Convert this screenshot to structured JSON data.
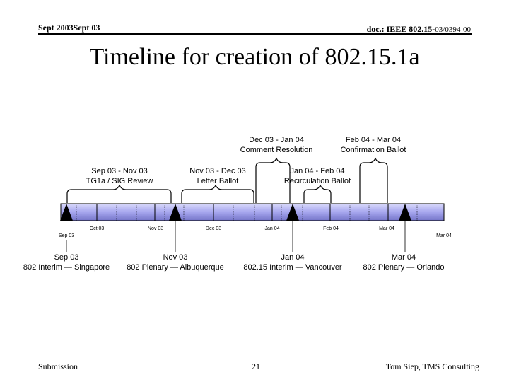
{
  "header": {
    "left": "Sept 2003Sept 03",
    "right_bold": "doc.: IEEE 802.15-",
    "right_light": "03/0394-00"
  },
  "title": "Timeline for creation of 802.15.1a",
  "timeline": {
    "ticks": [
      "Sep 03",
      "Oct 03",
      "Nov 03",
      "Dec 03",
      "Jan 04",
      "Feb 04",
      "Mar 04",
      "Mar 04"
    ],
    "phases_top": [
      {
        "line1": "Dec 03 - Jan 04",
        "line2": "Comment Resolution"
      },
      {
        "line1": "Feb 04 - Mar 04",
        "line2": "Confirmation Ballot"
      }
    ],
    "phases_bottom": [
      {
        "line1": "Sep 03 - Nov 03",
        "line2": "TG1a / SIG Review"
      },
      {
        "line1": "Nov 03 - Dec 03",
        "line2": "Letter Ballot"
      },
      {
        "line1": "Jan 04 - Feb 04",
        "line2": "Recirculation Ballot"
      }
    ],
    "meetings": [
      {
        "date": "Sep 03",
        "name": "802 Interim — Singapore"
      },
      {
        "date": "Nov 03",
        "name": "802 Plenary — Albuquerque"
      },
      {
        "date": "Jan 04",
        "name": "802.15 Interim — Vancouver"
      },
      {
        "date": "Mar 04",
        "name": "802 Plenary — Orlando"
      }
    ],
    "colors": {
      "bar_light": "#d8d8fb",
      "bar_mid": "#a6a6ee",
      "bar_dark": "#7474c8",
      "outline": "#000000"
    }
  },
  "footer": {
    "left": "Submission",
    "page": "21",
    "right": "Tom Siep, TMS Consulting"
  }
}
